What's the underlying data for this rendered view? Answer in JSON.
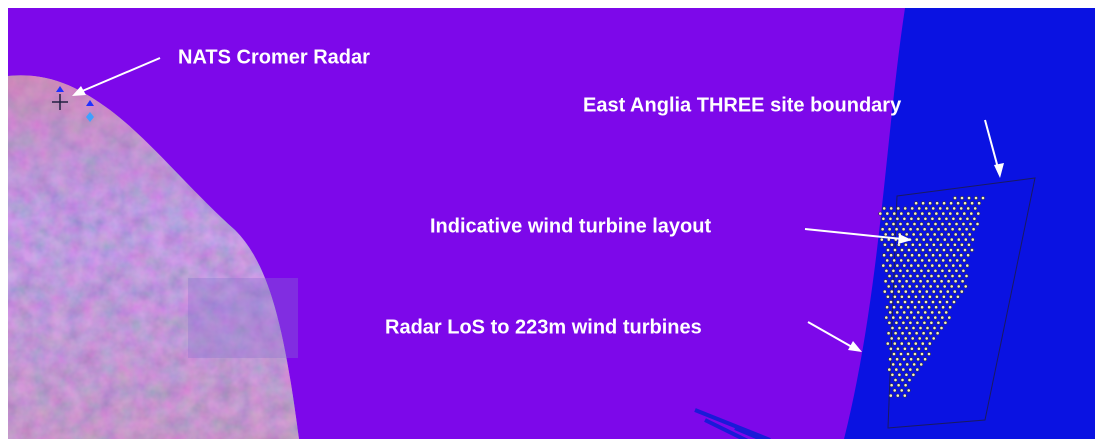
{
  "labels": {
    "radar": "NATS Cromer Radar",
    "boundary": "East Anglia THREE site boundary",
    "layout": "Indicative wind turbine layout",
    "los": "Radar LoS to 223m wind turbines"
  }
}
